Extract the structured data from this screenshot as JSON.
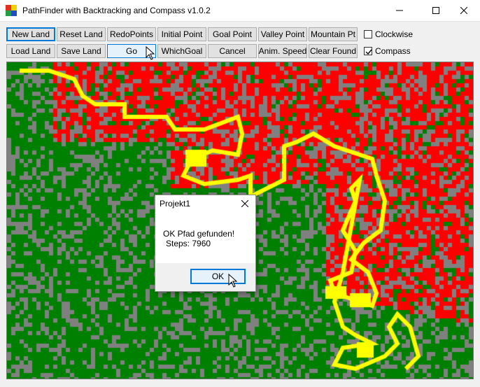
{
  "window": {
    "title": "PathFinder with Backtracking and Compass v1.0.2",
    "app_icon": "multicolor-grid-icon",
    "controls": [
      "minimize-icon",
      "maximize-icon",
      "close-icon"
    ]
  },
  "toolbar": {
    "row1": [
      "New Land",
      "Reset Land",
      "RedoPoints",
      "Initial Point",
      "Goal Point",
      "Valley Point",
      "Mountain Pt"
    ],
    "row2": [
      "Load Land",
      "Save Land",
      "Go",
      "WhichGoal",
      "Cancel",
      "Anim. Speed",
      "Clear Found"
    ],
    "clockwise": {
      "label": "Clockwise",
      "checked": false
    },
    "compass": {
      "label": "Compass",
      "checked": true
    }
  },
  "map": {
    "colors": {
      "land": "#008000",
      "wall": "#808080",
      "visited": "#ff0000",
      "path": "#ffff00"
    },
    "cell_size": "10px"
  },
  "dialog": {
    "title": "Projekt1",
    "message_line1": "OK Pfad gefunden!",
    "message_line2": "Steps: 7960",
    "ok_label": "OK"
  }
}
